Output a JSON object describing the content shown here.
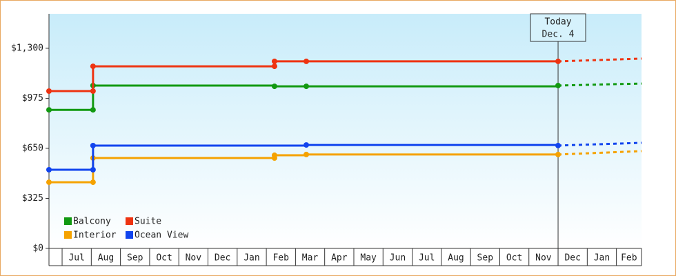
{
  "chart_data": {
    "type": "step-line",
    "categories": [
      null,
      "Jul",
      "Aug",
      "Sep",
      "Oct",
      "Nov",
      "Dec",
      "Jan",
      "Feb",
      "Mar",
      "Apr",
      "May",
      "Jun",
      "Jul",
      "Aug",
      "Sep",
      "Oct",
      "Nov",
      "Dec",
      "Jan",
      "Feb"
    ],
    "xlim": [
      -0.45,
      19.86
    ],
    "ylim": [
      0,
      1524
    ],
    "yticks": [
      {
        "value": 0,
        "label": "$0"
      },
      {
        "value": 325,
        "label": "$325"
      },
      {
        "value": 650,
        "label": "$650"
      },
      {
        "value": 975,
        "label": "$975"
      },
      {
        "value": 1300,
        "label": "$1,300"
      }
    ],
    "forecast_from": 17,
    "annotation": {
      "x": 17,
      "lines": [
        "Today",
        "Dec. 4"
      ]
    },
    "legend": "lower left",
    "series": [
      {
        "name": "Balcony",
        "color": "#119911",
        "x": [
          -0.45,
          1.06,
          1.06,
          7.28,
          8.37,
          17,
          19.86
        ],
        "values": [
          900,
          900,
          1058,
          1053,
          1053,
          1058,
          1071
        ]
      },
      {
        "name": "Suite",
        "color": "#ee3311",
        "x": [
          -0.45,
          1.06,
          1.06,
          7.28,
          7.28,
          8.37,
          17,
          19.86
        ],
        "values": [
          1022,
          1022,
          1183,
          1183,
          1215,
          1215,
          1215,
          1233
        ]
      },
      {
        "name": "Interior",
        "color": "#f5a200",
        "x": [
          -0.45,
          1.06,
          1.06,
          7.28,
          7.28,
          8.37,
          17,
          19.86
        ],
        "values": [
          430,
          430,
          587,
          587,
          605,
          610,
          610,
          632
        ]
      },
      {
        "name": "Ocean View",
        "color": "#1144ee",
        "x": [
          -0.45,
          1.06,
          1.06,
          8.37,
          17,
          19.86
        ],
        "values": [
          511,
          511,
          668,
          672,
          668,
          686
        ]
      }
    ]
  }
}
